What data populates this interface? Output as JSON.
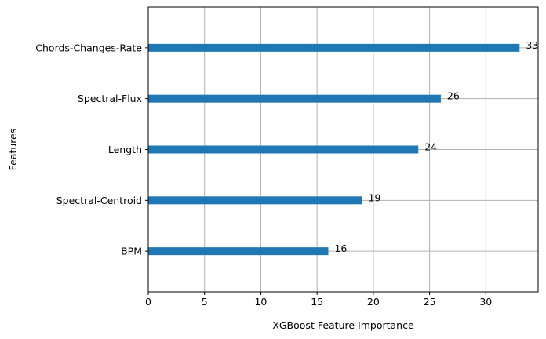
{
  "chart_data": {
    "type": "bar",
    "orientation": "horizontal",
    "title": "",
    "xlabel": "XGBoost Feature Importance",
    "ylabel": "Features",
    "categories": [
      "BPM",
      "Spectral-Centroid",
      "Length",
      "Spectral-Flux",
      "Chords-Changes-Rate"
    ],
    "values": [
      16,
      19,
      24,
      26,
      33
    ],
    "xlim": [
      0,
      34.65
    ],
    "xticks": [
      0,
      5,
      10,
      15,
      20,
      25,
      30
    ],
    "grid": true,
    "bar_color": "#1f77b4",
    "show_value_labels": true
  }
}
